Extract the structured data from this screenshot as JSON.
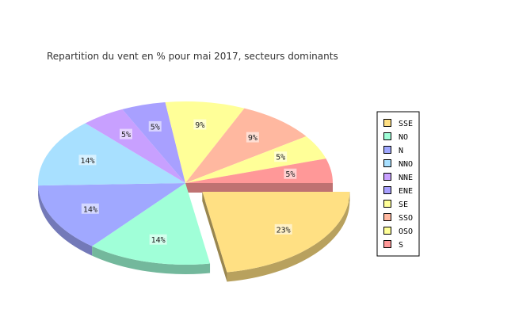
{
  "chart_data": {
    "type": "pie",
    "title": "Repartition du vent en % pour mai 2017, secteurs dominants",
    "categories": [
      "SSE",
      "NO",
      "N",
      "NNO",
      "NNE",
      "ENE",
      "SE",
      "SSO",
      "OSO",
      "S"
    ],
    "values": [
      23,
      14,
      14,
      14,
      5,
      5,
      9,
      9,
      5,
      5
    ],
    "labels": [
      "23%",
      "14%",
      "14%",
      "14%",
      "5%",
      "5%",
      "9%",
      "9%",
      "5%",
      "5%"
    ],
    "colors": [
      "#ffe083",
      "#a0ffd8",
      "#a0a8ff",
      "#a8e0ff",
      "#c8a0ff",
      "#a8a0ff",
      "#ffff98",
      "#ffb8a0",
      "#ffff98",
      "#ff9898"
    ],
    "exploded": "SSE",
    "legend_position": "right",
    "style": "3d"
  }
}
